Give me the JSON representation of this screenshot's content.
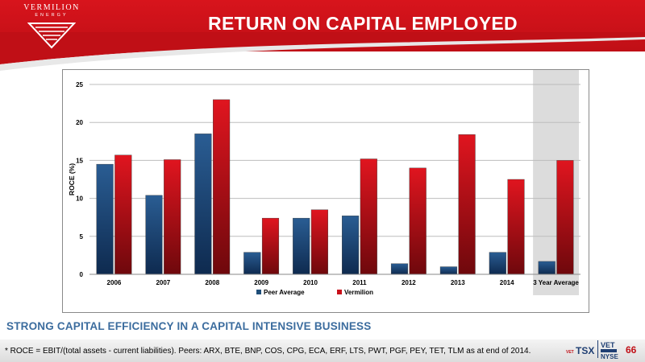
{
  "header": {
    "title": "RETURN ON CAPITAL EMPLOYED",
    "logo_word": "VERMILION",
    "logo_sub": "ENERGY"
  },
  "subtitle": "STRONG CAPITAL EFFICIENCY IN A CAPITAL INTENSIVE BUSINESS",
  "footnote": "* ROCE = EBIT/(total assets - current liabilities).  Peers: ARX, BTE, BNP, COS, CPG, ECA, ERF, LTS, PWT, PGF, PEY, TET, TLM as at end of 2014.",
  "ticker": {
    "small": "VET",
    "tsx": "TSX",
    "vet": "VET",
    "nyse": "NYSE"
  },
  "page_number": "66",
  "colors": {
    "brand_red": "#c00f16",
    "peer": "#1f4e79",
    "vermilion": "#c8101a",
    "subtitle_blue": "#3b6c9e",
    "highlight": "#dcdcdc"
  },
  "chart_data": {
    "type": "bar",
    "categories": [
      "2006",
      "2007",
      "2008",
      "2009",
      "2010",
      "2011",
      "2012",
      "2013",
      "2014",
      "3 Year Average"
    ],
    "series": [
      {
        "name": "Peer Average",
        "values": [
          14.5,
          10.4,
          18.5,
          2.9,
          7.4,
          7.7,
          1.4,
          1.0,
          2.9,
          1.7
        ]
      },
      {
        "name": "Vermilion",
        "values": [
          15.7,
          15.1,
          23.0,
          7.4,
          8.5,
          15.2,
          14.0,
          18.4,
          12.5,
          15.0
        ]
      }
    ],
    "ylabel": "ROCE (%)",
    "ylim": [
      0,
      25
    ],
    "yticks": [
      "0",
      "5",
      "10",
      "15",
      "20",
      "25"
    ],
    "grid": true,
    "legend": "bottom",
    "highlighted_category": "3 Year Average"
  }
}
